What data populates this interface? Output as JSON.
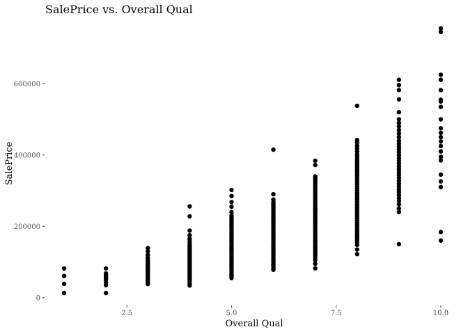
{
  "chart_data": {
    "type": "scatter",
    "title": "SalePrice vs. Overall Qual",
    "xlabel": "Overall Qual",
    "ylabel": "SalePrice",
    "xlim": [
      0.55,
      10.45
    ],
    "ylim": [
      -20000,
      780000
    ],
    "x_ticks": [
      2.5,
      5.0,
      7.5,
      10.0
    ],
    "x_tick_labels": [
      "2.5",
      "5.0",
      "7.5",
      "10.0"
    ],
    "y_ticks": [
      0,
      200000,
      400000,
      600000
    ],
    "y_tick_labels": [
      "0",
      "200000",
      "400000",
      "600000"
    ],
    "grid": false,
    "point_color": "#000000",
    "points": [
      {
        "x": 1,
        "y": 13000
      },
      {
        "x": 1,
        "y": 39000
      },
      {
        "x": 1,
        "y": 61000
      },
      {
        "x": 1,
        "y": 82000
      },
      {
        "x": 2,
        "y": 13000
      },
      {
        "x": 2,
        "y": 35000
      },
      {
        "x": 2,
        "y": 43000
      },
      {
        "x": 2,
        "y": 50000
      },
      {
        "x": 2,
        "y": 55000
      },
      {
        "x": 2,
        "y": 60000
      },
      {
        "x": 2,
        "y": 64000
      },
      {
        "x": 2,
        "y": 68000
      },
      {
        "x": 2,
        "y": 82000
      },
      {
        "x": 3,
        "y": 38000
      },
      {
        "x": 3,
        "y": 44000
      },
      {
        "x": 3,
        "y": 50000
      },
      {
        "x": 3,
        "y": 55000
      },
      {
        "x": 3,
        "y": 60000
      },
      {
        "x": 3,
        "y": 64000
      },
      {
        "x": 3,
        "y": 68000
      },
      {
        "x": 3,
        "y": 72000
      },
      {
        "x": 3,
        "y": 76000
      },
      {
        "x": 3,
        "y": 80000
      },
      {
        "x": 3,
        "y": 84000
      },
      {
        "x": 3,
        "y": 88000
      },
      {
        "x": 3,
        "y": 92000
      },
      {
        "x": 3,
        "y": 96000
      },
      {
        "x": 3,
        "y": 100000
      },
      {
        "x": 3,
        "y": 106000
      },
      {
        "x": 3,
        "y": 112000
      },
      {
        "x": 3,
        "y": 120000
      },
      {
        "x": 3,
        "y": 130000
      },
      {
        "x": 3,
        "y": 139000
      },
      {
        "x": 4,
        "y": 34000
      },
      {
        "x": 4,
        "y": 40000
      },
      {
        "x": 4,
        "y": 46000
      },
      {
        "x": 4,
        "y": 52000
      },
      {
        "x": 4,
        "y": 57000
      },
      {
        "x": 4,
        "y": 62000
      },
      {
        "x": 4,
        "y": 66000
      },
      {
        "x": 4,
        "y": 70000
      },
      {
        "x": 4,
        "y": 74000
      },
      {
        "x": 4,
        "y": 78000
      },
      {
        "x": 4,
        "y": 82000
      },
      {
        "x": 4,
        "y": 86000
      },
      {
        "x": 4,
        "y": 90000
      },
      {
        "x": 4,
        "y": 94000
      },
      {
        "x": 4,
        "y": 98000
      },
      {
        "x": 4,
        "y": 102000
      },
      {
        "x": 4,
        "y": 106000
      },
      {
        "x": 4,
        "y": 110000
      },
      {
        "x": 4,
        "y": 114000
      },
      {
        "x": 4,
        "y": 118000
      },
      {
        "x": 4,
        "y": 122000
      },
      {
        "x": 4,
        "y": 126000
      },
      {
        "x": 4,
        "y": 130000
      },
      {
        "x": 4,
        "y": 134000
      },
      {
        "x": 4,
        "y": 138000
      },
      {
        "x": 4,
        "y": 142000
      },
      {
        "x": 4,
        "y": 146000
      },
      {
        "x": 4,
        "y": 152000
      },
      {
        "x": 4,
        "y": 158000
      },
      {
        "x": 4,
        "y": 165000
      },
      {
        "x": 4,
        "y": 175000
      },
      {
        "x": 4,
        "y": 188000
      },
      {
        "x": 4,
        "y": 228000
      },
      {
        "x": 4,
        "y": 256000
      },
      {
        "x": 5,
        "y": 55000
      },
      {
        "x": 5,
        "y": 60000
      },
      {
        "x": 5,
        "y": 65000
      },
      {
        "x": 5,
        "y": 70000
      },
      {
        "x": 5,
        "y": 75000
      },
      {
        "x": 5,
        "y": 80000
      },
      {
        "x": 5,
        "y": 85000
      },
      {
        "x": 5,
        "y": 90000
      },
      {
        "x": 5,
        "y": 95000
      },
      {
        "x": 5,
        "y": 100000
      },
      {
        "x": 5,
        "y": 105000
      },
      {
        "x": 5,
        "y": 110000
      },
      {
        "x": 5,
        "y": 115000
      },
      {
        "x": 5,
        "y": 120000
      },
      {
        "x": 5,
        "y": 125000
      },
      {
        "x": 5,
        "y": 130000
      },
      {
        "x": 5,
        "y": 135000
      },
      {
        "x": 5,
        "y": 140000
      },
      {
        "x": 5,
        "y": 145000
      },
      {
        "x": 5,
        "y": 150000
      },
      {
        "x": 5,
        "y": 155000
      },
      {
        "x": 5,
        "y": 160000
      },
      {
        "x": 5,
        "y": 165000
      },
      {
        "x": 5,
        "y": 170000
      },
      {
        "x": 5,
        "y": 175000
      },
      {
        "x": 5,
        "y": 180000
      },
      {
        "x": 5,
        "y": 185000
      },
      {
        "x": 5,
        "y": 190000
      },
      {
        "x": 5,
        "y": 195000
      },
      {
        "x": 5,
        "y": 200000
      },
      {
        "x": 5,
        "y": 205000
      },
      {
        "x": 5,
        "y": 210000
      },
      {
        "x": 5,
        "y": 215000
      },
      {
        "x": 5,
        "y": 220000
      },
      {
        "x": 5,
        "y": 225000
      },
      {
        "x": 5,
        "y": 230000
      },
      {
        "x": 5,
        "y": 240000
      },
      {
        "x": 5,
        "y": 255000
      },
      {
        "x": 5,
        "y": 268000
      },
      {
        "x": 5,
        "y": 285000
      },
      {
        "x": 5,
        "y": 302000
      },
      {
        "x": 6,
        "y": 78000
      },
      {
        "x": 6,
        "y": 83000
      },
      {
        "x": 6,
        "y": 88000
      },
      {
        "x": 6,
        "y": 93000
      },
      {
        "x": 6,
        "y": 98000
      },
      {
        "x": 6,
        "y": 103000
      },
      {
        "x": 6,
        "y": 108000
      },
      {
        "x": 6,
        "y": 113000
      },
      {
        "x": 6,
        "y": 118000
      },
      {
        "x": 6,
        "y": 123000
      },
      {
        "x": 6,
        "y": 128000
      },
      {
        "x": 6,
        "y": 133000
      },
      {
        "x": 6,
        "y": 138000
      },
      {
        "x": 6,
        "y": 143000
      },
      {
        "x": 6,
        "y": 148000
      },
      {
        "x": 6,
        "y": 153000
      },
      {
        "x": 6,
        "y": 158000
      },
      {
        "x": 6,
        "y": 163000
      },
      {
        "x": 6,
        "y": 168000
      },
      {
        "x": 6,
        "y": 173000
      },
      {
        "x": 6,
        "y": 178000
      },
      {
        "x": 6,
        "y": 183000
      },
      {
        "x": 6,
        "y": 188000
      },
      {
        "x": 6,
        "y": 193000
      },
      {
        "x": 6,
        "y": 198000
      },
      {
        "x": 6,
        "y": 203000
      },
      {
        "x": 6,
        "y": 208000
      },
      {
        "x": 6,
        "y": 213000
      },
      {
        "x": 6,
        "y": 218000
      },
      {
        "x": 6,
        "y": 223000
      },
      {
        "x": 6,
        "y": 228000
      },
      {
        "x": 6,
        "y": 233000
      },
      {
        "x": 6,
        "y": 238000
      },
      {
        "x": 6,
        "y": 243000
      },
      {
        "x": 6,
        "y": 248000
      },
      {
        "x": 6,
        "y": 253000
      },
      {
        "x": 6,
        "y": 258000
      },
      {
        "x": 6,
        "y": 263000
      },
      {
        "x": 6,
        "y": 268000
      },
      {
        "x": 6,
        "y": 275000
      },
      {
        "x": 6,
        "y": 290000
      },
      {
        "x": 6,
        "y": 415000
      },
      {
        "x": 7,
        "y": 82000
      },
      {
        "x": 7,
        "y": 95000
      },
      {
        "x": 7,
        "y": 105000
      },
      {
        "x": 7,
        "y": 112000
      },
      {
        "x": 7,
        "y": 118000
      },
      {
        "x": 7,
        "y": 124000
      },
      {
        "x": 7,
        "y": 130000
      },
      {
        "x": 7,
        "y": 136000
      },
      {
        "x": 7,
        "y": 142000
      },
      {
        "x": 7,
        "y": 148000
      },
      {
        "x": 7,
        "y": 154000
      },
      {
        "x": 7,
        "y": 160000
      },
      {
        "x": 7,
        "y": 166000
      },
      {
        "x": 7,
        "y": 172000
      },
      {
        "x": 7,
        "y": 178000
      },
      {
        "x": 7,
        "y": 184000
      },
      {
        "x": 7,
        "y": 190000
      },
      {
        "x": 7,
        "y": 196000
      },
      {
        "x": 7,
        "y": 202000
      },
      {
        "x": 7,
        "y": 208000
      },
      {
        "x": 7,
        "y": 214000
      },
      {
        "x": 7,
        "y": 220000
      },
      {
        "x": 7,
        "y": 226000
      },
      {
        "x": 7,
        "y": 232000
      },
      {
        "x": 7,
        "y": 238000
      },
      {
        "x": 7,
        "y": 244000
      },
      {
        "x": 7,
        "y": 250000
      },
      {
        "x": 7,
        "y": 256000
      },
      {
        "x": 7,
        "y": 262000
      },
      {
        "x": 7,
        "y": 268000
      },
      {
        "x": 7,
        "y": 274000
      },
      {
        "x": 7,
        "y": 280000
      },
      {
        "x": 7,
        "y": 286000
      },
      {
        "x": 7,
        "y": 292000
      },
      {
        "x": 7,
        "y": 298000
      },
      {
        "x": 7,
        "y": 304000
      },
      {
        "x": 7,
        "y": 310000
      },
      {
        "x": 7,
        "y": 316000
      },
      {
        "x": 7,
        "y": 322000
      },
      {
        "x": 7,
        "y": 328000
      },
      {
        "x": 7,
        "y": 334000
      },
      {
        "x": 7,
        "y": 340000
      },
      {
        "x": 7,
        "y": 372000
      },
      {
        "x": 7,
        "y": 384000
      },
      {
        "x": 8,
        "y": 122000
      },
      {
        "x": 8,
        "y": 135000
      },
      {
        "x": 8,
        "y": 148000
      },
      {
        "x": 8,
        "y": 156000
      },
      {
        "x": 8,
        "y": 162000
      },
      {
        "x": 8,
        "y": 168000
      },
      {
        "x": 8,
        "y": 174000
      },
      {
        "x": 8,
        "y": 180000
      },
      {
        "x": 8,
        "y": 186000
      },
      {
        "x": 8,
        "y": 192000
      },
      {
        "x": 8,
        "y": 198000
      },
      {
        "x": 8,
        "y": 204000
      },
      {
        "x": 8,
        "y": 210000
      },
      {
        "x": 8,
        "y": 216000
      },
      {
        "x": 8,
        "y": 222000
      },
      {
        "x": 8,
        "y": 228000
      },
      {
        "x": 8,
        "y": 234000
      },
      {
        "x": 8,
        "y": 240000
      },
      {
        "x": 8,
        "y": 246000
      },
      {
        "x": 8,
        "y": 252000
      },
      {
        "x": 8,
        "y": 258000
      },
      {
        "x": 8,
        "y": 264000
      },
      {
        "x": 8,
        "y": 270000
      },
      {
        "x": 8,
        "y": 276000
      },
      {
        "x": 8,
        "y": 282000
      },
      {
        "x": 8,
        "y": 288000
      },
      {
        "x": 8,
        "y": 294000
      },
      {
        "x": 8,
        "y": 300000
      },
      {
        "x": 8,
        "y": 306000
      },
      {
        "x": 8,
        "y": 312000
      },
      {
        "x": 8,
        "y": 318000
      },
      {
        "x": 8,
        "y": 324000
      },
      {
        "x": 8,
        "y": 330000
      },
      {
        "x": 8,
        "y": 336000
      },
      {
        "x": 8,
        "y": 342000
      },
      {
        "x": 8,
        "y": 348000
      },
      {
        "x": 8,
        "y": 354000
      },
      {
        "x": 8,
        "y": 360000
      },
      {
        "x": 8,
        "y": 366000
      },
      {
        "x": 8,
        "y": 372000
      },
      {
        "x": 8,
        "y": 378000
      },
      {
        "x": 8,
        "y": 384000
      },
      {
        "x": 8,
        "y": 390000
      },
      {
        "x": 8,
        "y": 396000
      },
      {
        "x": 8,
        "y": 402000
      },
      {
        "x": 8,
        "y": 410000
      },
      {
        "x": 8,
        "y": 418000
      },
      {
        "x": 8,
        "y": 426000
      },
      {
        "x": 8,
        "y": 435000
      },
      {
        "x": 8,
        "y": 442000
      },
      {
        "x": 8,
        "y": 538000
      },
      {
        "x": 9,
        "y": 150000
      },
      {
        "x": 9,
        "y": 240000
      },
      {
        "x": 9,
        "y": 250000
      },
      {
        "x": 9,
        "y": 262000
      },
      {
        "x": 9,
        "y": 272000
      },
      {
        "x": 9,
        "y": 280000
      },
      {
        "x": 9,
        "y": 288000
      },
      {
        "x": 9,
        "y": 296000
      },
      {
        "x": 9,
        "y": 304000
      },
      {
        "x": 9,
        "y": 312000
      },
      {
        "x": 9,
        "y": 320000
      },
      {
        "x": 9,
        "y": 328000
      },
      {
        "x": 9,
        "y": 336000
      },
      {
        "x": 9,
        "y": 344000
      },
      {
        "x": 9,
        "y": 352000
      },
      {
        "x": 9,
        "y": 360000
      },
      {
        "x": 9,
        "y": 368000
      },
      {
        "x": 9,
        "y": 376000
      },
      {
        "x": 9,
        "y": 384000
      },
      {
        "x": 9,
        "y": 392000
      },
      {
        "x": 9,
        "y": 400000
      },
      {
        "x": 9,
        "y": 408000
      },
      {
        "x": 9,
        "y": 416000
      },
      {
        "x": 9,
        "y": 424000
      },
      {
        "x": 9,
        "y": 432000
      },
      {
        "x": 9,
        "y": 440000
      },
      {
        "x": 9,
        "y": 450000
      },
      {
        "x": 9,
        "y": 460000
      },
      {
        "x": 9,
        "y": 470000
      },
      {
        "x": 9,
        "y": 480000
      },
      {
        "x": 9,
        "y": 490000
      },
      {
        "x": 9,
        "y": 500000
      },
      {
        "x": 9,
        "y": 520000
      },
      {
        "x": 9,
        "y": 556000
      },
      {
        "x": 9,
        "y": 582000
      },
      {
        "x": 9,
        "y": 596000
      },
      {
        "x": 9,
        "y": 611000
      },
      {
        "x": 10,
        "y": 160000
      },
      {
        "x": 10,
        "y": 184000
      },
      {
        "x": 10,
        "y": 310000
      },
      {
        "x": 10,
        "y": 326000
      },
      {
        "x": 10,
        "y": 345000
      },
      {
        "x": 10,
        "y": 385000
      },
      {
        "x": 10,
        "y": 395000
      },
      {
        "x": 10,
        "y": 410000
      },
      {
        "x": 10,
        "y": 425000
      },
      {
        "x": 10,
        "y": 438000
      },
      {
        "x": 10,
        "y": 450000
      },
      {
        "x": 10,
        "y": 462000
      },
      {
        "x": 10,
        "y": 475000
      },
      {
        "x": 10,
        "y": 500000
      },
      {
        "x": 10,
        "y": 535000
      },
      {
        "x": 10,
        "y": 550000
      },
      {
        "x": 10,
        "y": 555000
      },
      {
        "x": 10,
        "y": 582000
      },
      {
        "x": 10,
        "y": 611000
      },
      {
        "x": 10,
        "y": 625000
      },
      {
        "x": 10,
        "y": 745000
      },
      {
        "x": 10,
        "y": 755000
      }
    ]
  }
}
